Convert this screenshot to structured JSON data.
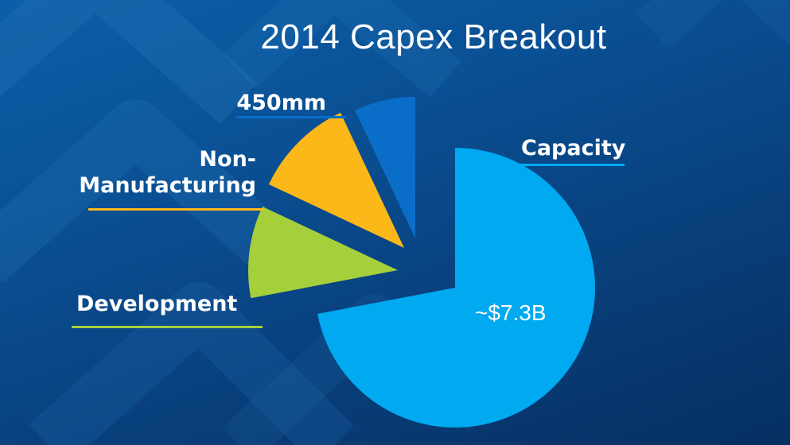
{
  "slide": {
    "title": "2014 Capex Breakout"
  },
  "chart_data": {
    "type": "pie",
    "title": "2014 Capex Breakout",
    "categories": [
      "Capacity",
      "Development",
      "Non-Manufacturing",
      "450mm"
    ],
    "values": [
      72,
      10,
      11,
      7
    ],
    "value_unit": "percent (estimated)",
    "colors": [
      "#00a9f0",
      "#a6cf3c",
      "#fcb718",
      "#0a6ec8"
    ],
    "leader_colors": [
      "#00a9f0",
      "#a6cf3c",
      "#fcb718",
      "#0a6ec8"
    ],
    "exploded_slices": [
      "Development",
      "Non-Manufacturing",
      "450mm"
    ],
    "data_labels": [
      "~$7.3B",
      "",
      "",
      ""
    ],
    "label_lines": [
      [
        "Capacity"
      ],
      [
        "Development"
      ],
      [
        "Non-",
        "Manufacturing"
      ],
      [
        "450mm"
      ]
    ]
  }
}
